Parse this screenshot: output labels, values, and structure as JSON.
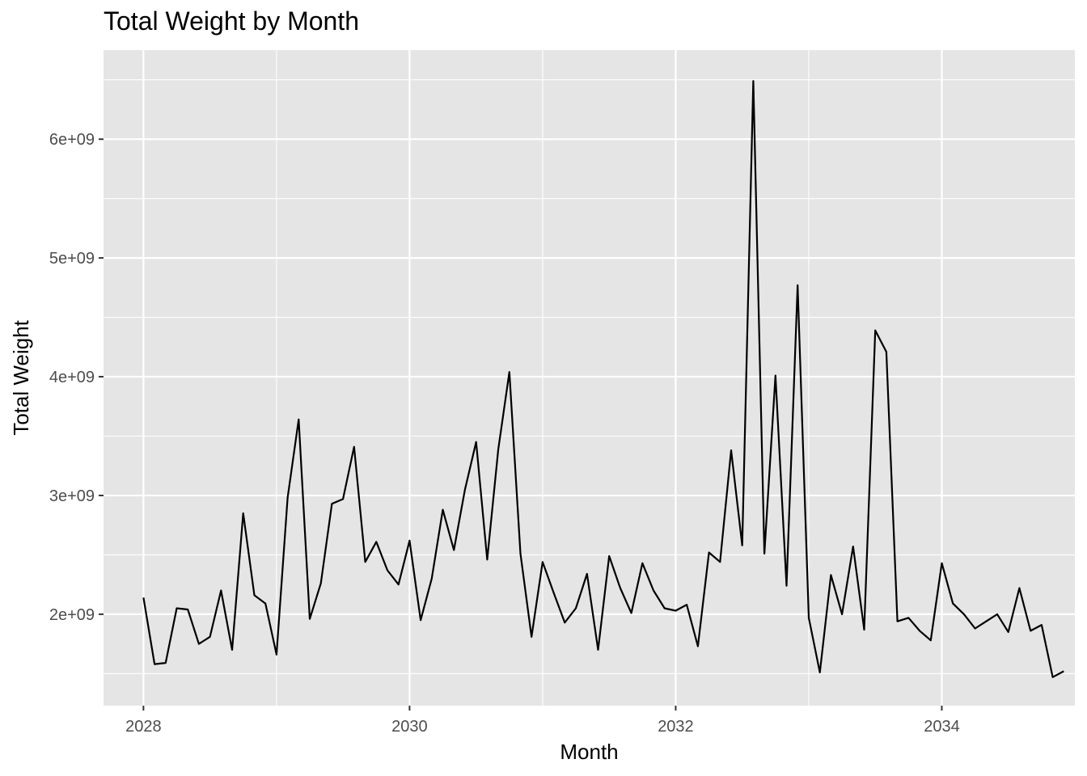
{
  "chart_data": {
    "type": "line",
    "title": "Total Weight by Month",
    "xlabel": "Month",
    "ylabel": "Total Weight",
    "x_ticks": [
      {
        "value": 2028,
        "label": "2028"
      },
      {
        "value": 2030,
        "label": "2030"
      },
      {
        "value": 2032,
        "label": "2032"
      },
      {
        "value": 2034,
        "label": "2034"
      }
    ],
    "y_ticks": [
      {
        "value": 2000000000,
        "label": "2e+09"
      },
      {
        "value": 3000000000,
        "label": "3e+09"
      },
      {
        "value": 4000000000,
        "label": "4e+09"
      },
      {
        "value": 5000000000,
        "label": "5e+09"
      },
      {
        "value": 6000000000,
        "label": "6e+09"
      }
    ],
    "xlim": [
      2027.7,
      2035.0
    ],
    "ylim": [
      1230000000,
      6750000000
    ],
    "grid": true,
    "line_color": "#000000",
    "panel_color": "#e5e5e5",
    "series": [
      {
        "x": [
          "2028-01",
          "2028-02",
          "2028-03",
          "2028-04",
          "2028-05",
          "2028-06",
          "2028-07",
          "2028-08",
          "2028-09",
          "2028-10",
          "2028-11",
          "2028-12",
          "2029-01",
          "2029-02",
          "2029-03",
          "2029-04",
          "2029-05",
          "2029-06",
          "2029-07",
          "2029-08",
          "2029-09",
          "2029-10",
          "2029-11",
          "2029-12",
          "2030-01",
          "2030-02",
          "2030-03",
          "2030-04",
          "2030-05",
          "2030-06",
          "2030-07",
          "2030-08",
          "2030-09",
          "2030-10",
          "2030-11",
          "2030-12",
          "2031-01",
          "2031-02",
          "2031-03",
          "2031-04",
          "2031-05",
          "2031-06",
          "2031-07",
          "2031-08",
          "2031-09",
          "2031-10",
          "2031-11",
          "2031-12",
          "2032-01",
          "2032-02",
          "2032-03",
          "2032-04",
          "2032-05",
          "2032-06",
          "2032-07",
          "2032-08",
          "2032-09",
          "2032-10",
          "2032-11",
          "2032-12",
          "2033-01",
          "2033-02",
          "2033-03",
          "2033-04",
          "2033-05",
          "2033-06",
          "2033-07",
          "2033-08",
          "2033-09",
          "2033-10",
          "2033-11",
          "2033-12",
          "2034-01",
          "2034-02",
          "2034-03",
          "2034-04",
          "2034-05",
          "2034-06",
          "2034-07",
          "2034-08",
          "2034-09",
          "2034-10",
          "2034-11",
          "2034-12"
        ],
        "values": [
          2140000000.0,
          1580000000.0,
          1590000000.0,
          2050000000.0,
          2040000000.0,
          1750000000.0,
          1810000000.0,
          2200000000.0,
          1700000000.0,
          2850000000.0,
          2160000000.0,
          2090000000.0,
          1660000000.0,
          2980000000.0,
          3640000000.0,
          1960000000.0,
          2260000000.0,
          2930000000.0,
          2970000000.0,
          3410000000.0,
          2440000000.0,
          2610000000.0,
          2370000000.0,
          2250000000.0,
          2620000000.0,
          1950000000.0,
          2300000000.0,
          2880000000.0,
          2540000000.0,
          3050000000.0,
          3450000000.0,
          2460000000.0,
          3390000000.0,
          4040000000.0,
          2510000000.0,
          1810000000.0,
          2440000000.0,
          2180000000.0,
          1930000000.0,
          2050000000.0,
          2340000000.0,
          1700000000.0,
          2490000000.0,
          2220000000.0,
          2010000000.0,
          2430000000.0,
          2200000000.0,
          2050000000.0,
          2030000000.0,
          2080000000.0,
          1730000000.0,
          2520000000.0,
          2440000000.0,
          3380000000.0,
          2580000000.0,
          6490000000.0,
          2510000000.0,
          4010000000.0,
          2240000000.0,
          4770000000.0,
          1970000000.0,
          1510000000.0,
          2330000000.0,
          2000000000.0,
          2570000000.0,
          1870000000.0,
          4390000000.0,
          4210000000.0,
          1940000000.0,
          1970000000.0,
          1860000000.0,
          1780000000.0,
          2430000000.0,
          2090000000.0,
          2000000000.0,
          1880000000.0,
          1940000000.0,
          2000000000.0,
          1850000000.0,
          2220000000.0,
          1860000000.0,
          1910000000.0,
          1470000000.0,
          1520000000.0
        ]
      }
    ]
  }
}
